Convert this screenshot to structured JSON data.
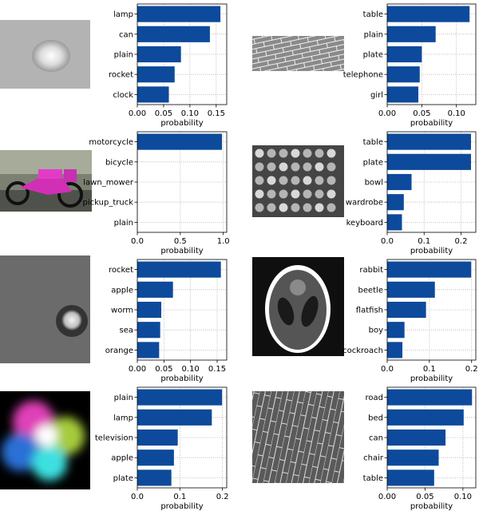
{
  "colors": {
    "bar": "#0d4a9b",
    "axis": "#000000",
    "grid": "#b0b0b0"
  },
  "panels": [
    {
      "image": "grayscale-lamp-photo",
      "chart_data": {
        "type": "bar",
        "orientation": "horizontal",
        "categories": [
          "lamp",
          "can",
          "plain",
          "rocket",
          "clock"
        ],
        "values": [
          0.158,
          0.138,
          0.083,
          0.071,
          0.06
        ],
        "xlabel": "probability",
        "xlim": [
          0,
          0.17
        ],
        "xticks": [
          "0.00",
          "0.05",
          "0.10",
          "0.15"
        ],
        "xtick_values": [
          0,
          0.05,
          0.1,
          0.15
        ],
        "grid": true
      }
    },
    {
      "image": "brick-texture-photo",
      "chart_data": {
        "type": "bar",
        "orientation": "horizontal",
        "categories": [
          "table",
          "plain",
          "plate",
          "telephone",
          "girl"
        ],
        "values": [
          0.119,
          0.07,
          0.05,
          0.047,
          0.045
        ],
        "xlabel": "probability",
        "xlim": [
          0,
          0.128
        ],
        "xticks": [
          "0.00",
          "0.05",
          "0.10"
        ],
        "xtick_values": [
          0,
          0.05,
          0.1
        ],
        "grid": true
      }
    },
    {
      "image": "motorcycle-photo",
      "chart_data": {
        "type": "bar",
        "orientation": "horizontal",
        "categories": [
          "motorcycle",
          "bicycle",
          "lawn_mower",
          "pickup_truck",
          "plain"
        ],
        "values": [
          0.985,
          0.002,
          0.001,
          0.001,
          0.001
        ],
        "xlabel": "probability",
        "xlim": [
          0,
          1.04
        ],
        "xticks": [
          "0.0",
          "0.5",
          "1.0"
        ],
        "xtick_values": [
          0,
          0.5,
          1.0
        ],
        "grid": true
      }
    },
    {
      "image": "coins-photo",
      "chart_data": {
        "type": "bar",
        "orientation": "horizontal",
        "categories": [
          "table",
          "plate",
          "bowl",
          "wardrobe",
          "keyboard"
        ],
        "values": [
          0.227,
          0.227,
          0.066,
          0.045,
          0.04
        ],
        "xlabel": "probability",
        "xlim": [
          0,
          0.24
        ],
        "xticks": [
          "0.0",
          "0.1",
          "0.2"
        ],
        "xtick_values": [
          0,
          0.1,
          0.2
        ],
        "grid": true
      }
    },
    {
      "image": "moon-photo",
      "chart_data": {
        "type": "bar",
        "orientation": "horizontal",
        "categories": [
          "rocket",
          "apple",
          "worm",
          "sea",
          "orange"
        ],
        "values": [
          0.157,
          0.067,
          0.045,
          0.043,
          0.041
        ],
        "xlabel": "probability",
        "xlim": [
          0,
          0.168
        ],
        "xticks": [
          "0.00",
          "0.05",
          "0.10",
          "0.15"
        ],
        "xtick_values": [
          0,
          0.05,
          0.1,
          0.15
        ],
        "grid": true
      }
    },
    {
      "image": "shepp-logan-phantom",
      "chart_data": {
        "type": "bar",
        "orientation": "horizontal",
        "categories": [
          "rabbit",
          "beetle",
          "flatfish",
          "boy",
          "cockroach"
        ],
        "values": [
          0.199,
          0.113,
          0.092,
          0.041,
          0.036
        ],
        "xlabel": "probability",
        "xlim": [
          0,
          0.21
        ],
        "xticks": [
          "0.0",
          "0.1",
          "0.2"
        ],
        "xtick_values": [
          0,
          0.1,
          0.2
        ],
        "grid": true
      }
    },
    {
      "image": "color-wheel-photo",
      "chart_data": {
        "type": "bar",
        "orientation": "horizontal",
        "categories": [
          "plain",
          "lamp",
          "television",
          "apple",
          "plate"
        ],
        "values": [
          0.199,
          0.175,
          0.095,
          0.086,
          0.08
        ],
        "xlabel": "probability",
        "xlim": [
          0,
          0.21
        ],
        "xticks": [
          "0.0",
          "0.1",
          "0.2"
        ],
        "xtick_values": [
          0,
          0.1,
          0.2
        ],
        "grid": true
      }
    },
    {
      "image": "brick-floor-photo",
      "chart_data": {
        "type": "bar",
        "orientation": "horizontal",
        "categories": [
          "road",
          "bed",
          "can",
          "chair",
          "table"
        ],
        "values": [
          0.112,
          0.101,
          0.077,
          0.068,
          0.062
        ],
        "xlabel": "probability",
        "xlim": [
          0,
          0.117
        ],
        "xticks": [
          "0.00",
          "0.05",
          "0.10"
        ],
        "xtick_values": [
          0,
          0.05,
          0.1
        ],
        "grid": true
      }
    }
  ]
}
